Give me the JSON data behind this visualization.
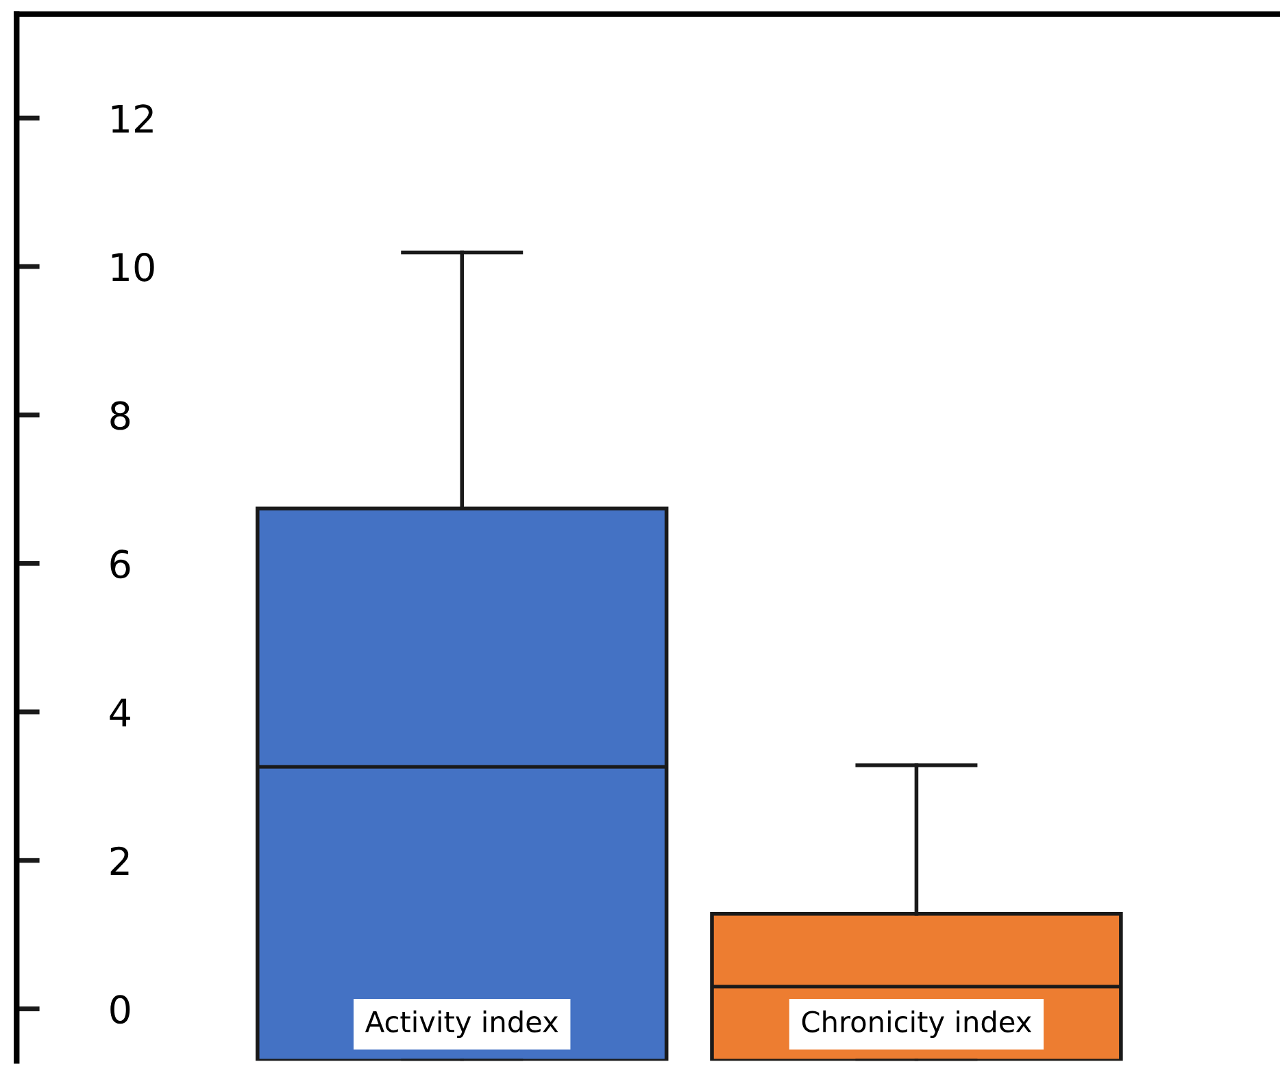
{
  "chart_data": {
    "type": "box",
    "categories": [
      "Activity index",
      "Chronicity index"
    ],
    "boxes": [
      {
        "low": -0.7,
        "q1": -0.7,
        "median": 3.26,
        "q3": 6.74,
        "high": 10.19
      },
      {
        "low": -0.7,
        "q1": -0.7,
        "median": 0.3,
        "q3": 1.28,
        "high": 3.28
      }
    ],
    "colors": [
      "#4472c4",
      "#ed7d31"
    ],
    "ylim": [
      -0.7,
      13.4
    ],
    "yticks": [
      0,
      2,
      4,
      6,
      8,
      10,
      12
    ],
    "grid": false,
    "legend": false
  }
}
